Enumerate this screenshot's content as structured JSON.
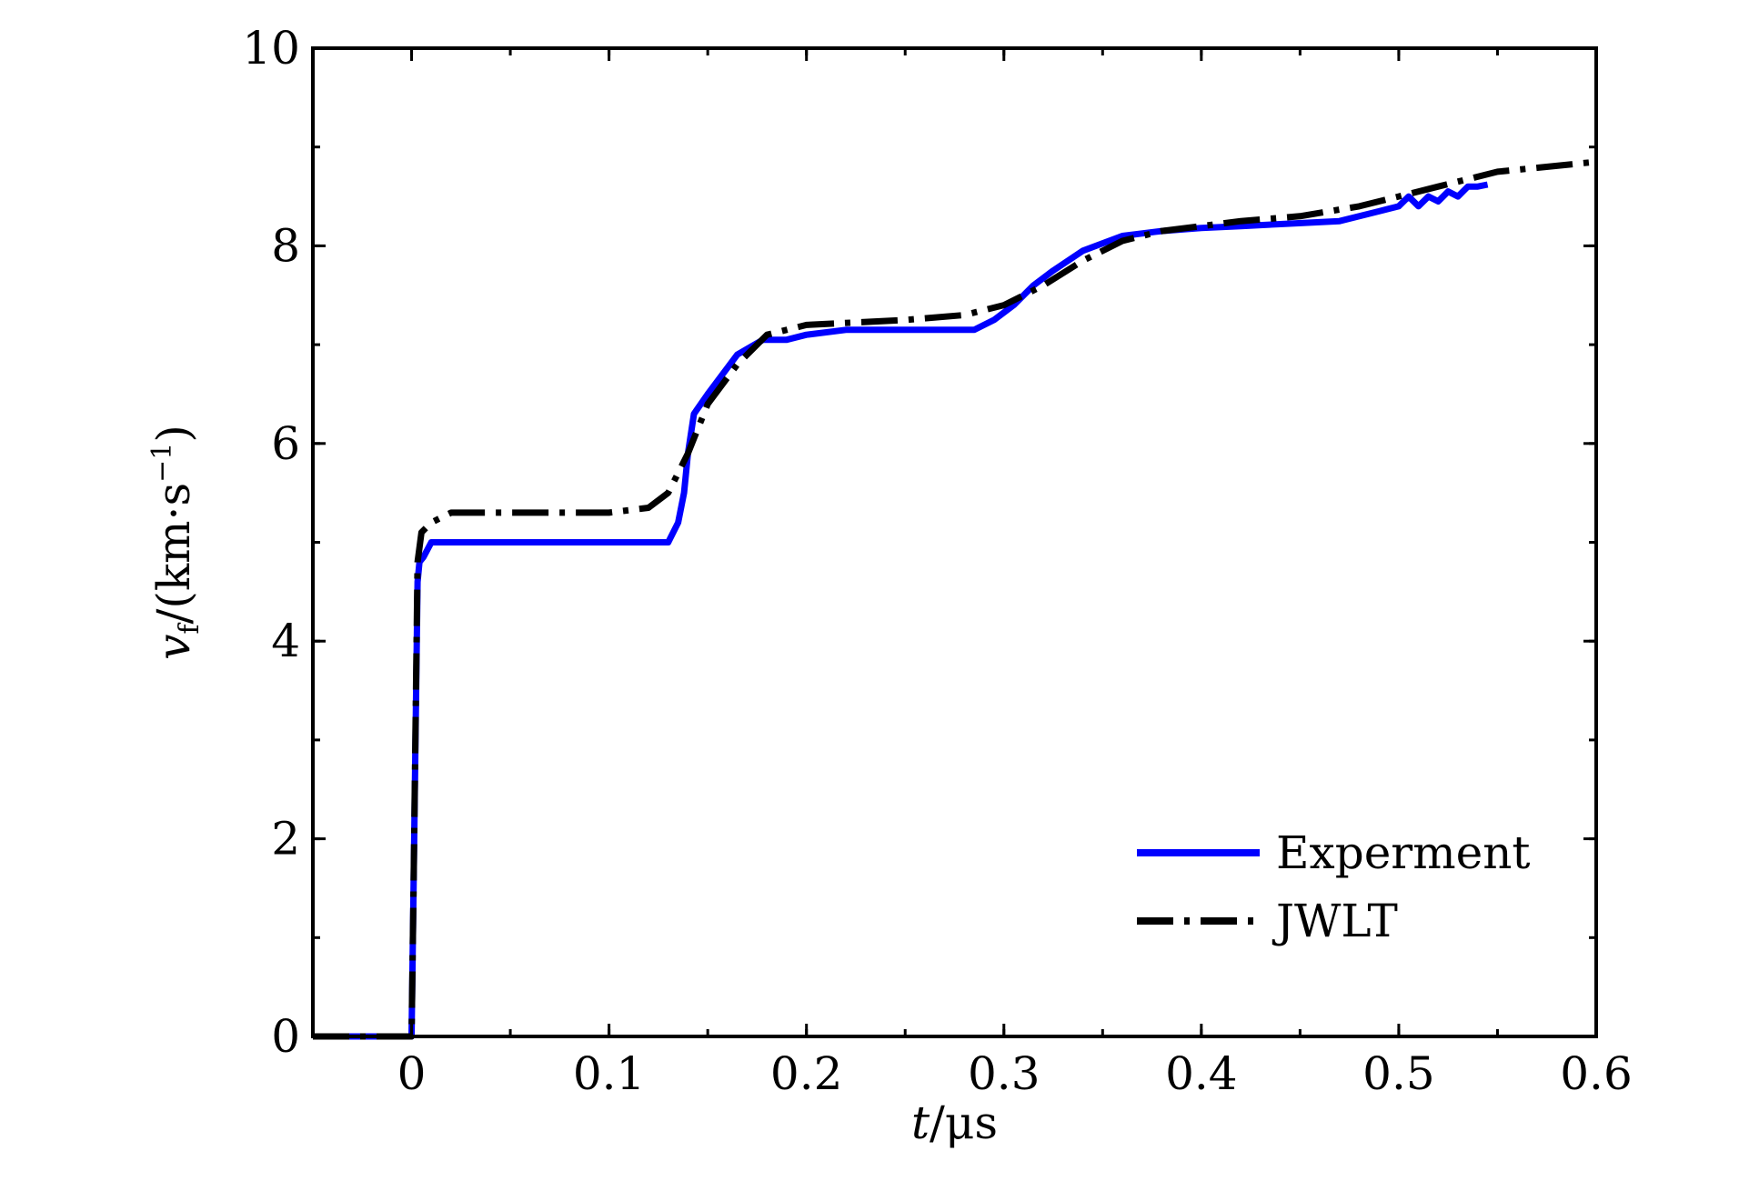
{
  "chart_data": {
    "type": "line",
    "title": "",
    "xlabel": {
      "var": "t",
      "sep": "/",
      "unit": "μs"
    },
    "ylabel": {
      "var": "v",
      "sub": "f",
      "unit_open": "/(km·s",
      "sup": "−1",
      "unit_close": ")"
    },
    "xlim": [
      -0.05,
      0.6
    ],
    "ylim": [
      0,
      10
    ],
    "xticks": [
      0,
      0.1,
      0.2,
      0.3,
      0.4,
      0.5,
      0.6
    ],
    "xtick_labels": [
      "0",
      "0.1",
      "0.2",
      "0.3",
      "0.4",
      "0.5",
      "0.6"
    ],
    "yticks": [
      0,
      2,
      4,
      6,
      8,
      10
    ],
    "ytick_labels": [
      "0",
      "2",
      "4",
      "6",
      "8",
      "10"
    ],
    "grid": false,
    "legend": "bottom-right",
    "series": [
      {
        "name": "Experment",
        "color": "#0000ff",
        "style": "solid",
        "x": [
          -0.05,
          -0.02,
          0.0,
          0.001,
          0.003,
          0.004,
          0.006,
          0.01,
          0.03,
          0.06,
          0.1,
          0.13,
          0.135,
          0.138,
          0.14,
          0.143,
          0.15,
          0.165,
          0.178,
          0.19,
          0.2,
          0.22,
          0.25,
          0.27,
          0.285,
          0.295,
          0.305,
          0.315,
          0.325,
          0.34,
          0.36,
          0.38,
          0.4,
          0.42,
          0.44,
          0.47,
          0.49,
          0.5,
          0.505,
          0.51,
          0.515,
          0.52,
          0.525,
          0.53,
          0.535,
          0.54,
          0.545
        ],
        "y": [
          0,
          0,
          0,
          1.5,
          4.6,
          4.8,
          4.85,
          5.0,
          5.0,
          5.0,
          5.0,
          5.0,
          5.2,
          5.5,
          5.9,
          6.3,
          6.5,
          6.9,
          7.05,
          7.05,
          7.1,
          7.15,
          7.15,
          7.15,
          7.15,
          7.25,
          7.4,
          7.6,
          7.75,
          7.95,
          8.1,
          8.15,
          8.18,
          8.2,
          8.22,
          8.25,
          8.35,
          8.4,
          8.5,
          8.4,
          8.5,
          8.45,
          8.55,
          8.5,
          8.6,
          8.6,
          8.62
        ]
      },
      {
        "name": "JWLT",
        "color": "#000000",
        "style": "dashdot",
        "x": [
          -0.05,
          0.0,
          0.001,
          0.003,
          0.005,
          0.01,
          0.02,
          0.05,
          0.1,
          0.12,
          0.13,
          0.14,
          0.15,
          0.165,
          0.18,
          0.2,
          0.25,
          0.28,
          0.3,
          0.32,
          0.34,
          0.36,
          0.38,
          0.4,
          0.42,
          0.45,
          0.48,
          0.5,
          0.52,
          0.55,
          0.6
        ],
        "y": [
          0,
          0,
          1.5,
          4.8,
          5.1,
          5.2,
          5.3,
          5.3,
          5.3,
          5.35,
          5.5,
          5.9,
          6.4,
          6.8,
          7.1,
          7.2,
          7.25,
          7.3,
          7.4,
          7.6,
          7.85,
          8.05,
          8.15,
          8.2,
          8.25,
          8.3,
          8.4,
          8.5,
          8.6,
          8.75,
          8.85
        ]
      }
    ]
  }
}
